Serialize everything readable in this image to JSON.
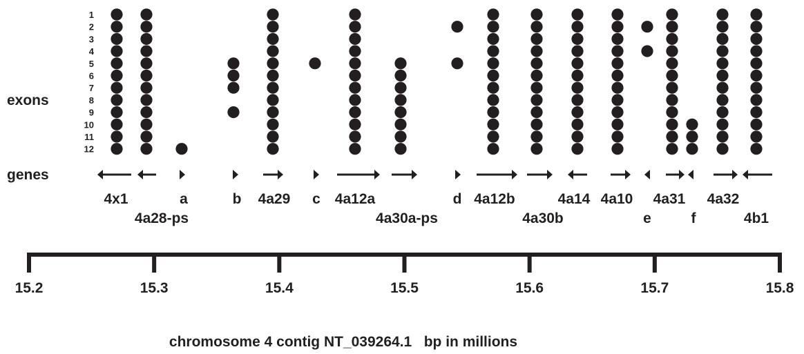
{
  "labels": {
    "exons": "exons",
    "genes": "genes",
    "caption": "chromosome 4 contig NT_039264.1   bp in millions"
  },
  "exon_numbers": [
    "1",
    "2",
    "3",
    "4",
    "5",
    "6",
    "7",
    "8",
    "9",
    "10",
    "11",
    "12"
  ],
  "axis": {
    "min": 15.2,
    "max": 15.8,
    "ticks": [
      "15.2",
      "15.3",
      "15.4",
      "15.5",
      "15.6",
      "15.7",
      "15.8"
    ]
  },
  "genes": [
    {
      "id": "4x1",
      "label": "4x1",
      "exons": [
        1,
        2,
        3,
        4,
        5,
        6,
        7,
        8,
        9,
        10,
        11,
        12
      ],
      "arrow": "left-long"
    },
    {
      "id": "4a28-ps",
      "label": "4a28-ps",
      "exons": [
        1,
        2,
        3,
        4,
        5,
        6,
        7,
        8,
        9,
        10,
        11,
        12
      ],
      "arrow": "left-short"
    },
    {
      "id": "a",
      "label": "a",
      "exons": [
        12
      ],
      "arrow": "right-head"
    },
    {
      "id": "b",
      "label": "b",
      "exons": [
        5,
        6,
        7,
        9
      ],
      "arrow": "right-head"
    },
    {
      "id": "4a29",
      "label": "4a29",
      "exons": [
        1,
        2,
        3,
        4,
        5,
        6,
        7,
        8,
        9,
        10,
        11,
        12
      ],
      "arrow": "right-short"
    },
    {
      "id": "c",
      "label": "c",
      "exons": [
        5
      ],
      "arrow": "right-head"
    },
    {
      "id": "4a12a",
      "label": "4a12a",
      "exons": [
        1,
        2,
        3,
        4,
        5,
        6,
        7,
        8,
        9,
        10,
        11,
        12
      ],
      "arrow": "right-long"
    },
    {
      "id": "4a30a-ps",
      "label": "4a30a-ps",
      "exons": [
        5,
        6,
        7,
        8,
        9,
        10,
        11,
        12
      ],
      "arrow": "right-medium"
    },
    {
      "id": "d",
      "label": "d",
      "exons": [
        2,
        5
      ],
      "arrow": "right-head"
    },
    {
      "id": "4a12b",
      "label": "4a12b",
      "exons": [
        1,
        2,
        3,
        4,
        5,
        6,
        7,
        8,
        9,
        10,
        11,
        12
      ],
      "arrow": "right-long"
    },
    {
      "id": "4a30b",
      "label": "4a30b",
      "exons": [
        1,
        2,
        3,
        4,
        5,
        6,
        7,
        8,
        9,
        10,
        11,
        12
      ],
      "arrow": "right-medium"
    },
    {
      "id": "4a14",
      "label": "4a14",
      "exons": [
        1,
        2,
        3,
        4,
        5,
        6,
        7,
        8,
        9,
        10,
        11,
        12
      ],
      "arrow": "left-short"
    },
    {
      "id": "4a10",
      "label": "4a10",
      "exons": [
        1,
        2,
        3,
        4,
        5,
        6,
        7,
        8,
        9,
        10,
        11,
        12
      ],
      "arrow": "right-short"
    },
    {
      "id": "e",
      "label": "e",
      "exons": [
        2,
        4
      ],
      "arrow": "left-head"
    },
    {
      "id": "4a31",
      "label": "4a31",
      "exons": [
        1,
        2,
        3,
        4,
        5,
        6,
        7,
        8,
        9,
        10,
        11,
        12
      ],
      "arrow": "right-short"
    },
    {
      "id": "f",
      "label": "f",
      "exons": [
        10,
        11,
        12
      ],
      "arrow": "left-head"
    },
    {
      "id": "4a32",
      "label": "4a32",
      "exons": [
        1,
        2,
        3,
        4,
        5,
        6,
        7,
        8,
        9,
        10,
        11,
        12
      ],
      "arrow": "right-medium"
    },
    {
      "id": "4b1",
      "label": "4b1",
      "exons": [
        1,
        2,
        3,
        4,
        5,
        6,
        7,
        8,
        9,
        10,
        11,
        12
      ],
      "arrow": "left-medium"
    }
  ]
}
